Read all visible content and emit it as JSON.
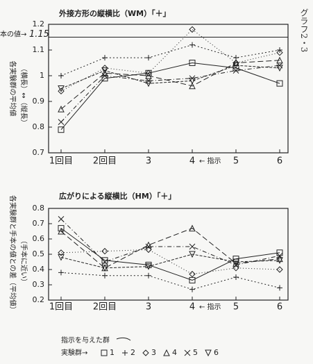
{
  "side_title": "グラフ2・3",
  "legend": {
    "title": "指示を与えた群",
    "label": "実験群→"
  },
  "chart_data": [
    {
      "type": "line",
      "title": "外接方形の縦横比（WM）「＋」",
      "y_label": "各実験群の平均値",
      "y_note": "（横長）↔（縦長）",
      "reference": {
        "label": "本の値→",
        "value": 1.15
      },
      "categories": [
        "1回目",
        "2回目",
        "3",
        "4",
        "5",
        "6"
      ],
      "annotation": "← 指示",
      "ylim": [
        0.7,
        1.2
      ],
      "yticks": [
        0.7,
        0.8,
        0.9,
        1,
        1.1,
        1.2
      ],
      "series": [
        {
          "name": "1",
          "marker": "square",
          "dash": "",
          "color": "#222",
          "values": [
            0.79,
            0.99,
            1.01,
            1.05,
            1.03,
            0.97
          ]
        },
        {
          "name": "2",
          "marker": "plus",
          "dash": "2,3",
          "color": "#222",
          "values": [
            1.0,
            1.07,
            1.07,
            1.12,
            1.07,
            1.1
          ]
        },
        {
          "name": "3",
          "marker": "diamond",
          "dash": "1,3",
          "color": "#222",
          "values": [
            0.94,
            1.03,
            1.01,
            1.18,
            1.05,
            1.09
          ]
        },
        {
          "name": "4",
          "marker": "triangle",
          "dash": "8,4",
          "color": "#222",
          "values": [
            0.87,
            1.01,
            1.0,
            0.96,
            1.05,
            1.06
          ]
        },
        {
          "name": "5",
          "marker": "x",
          "dash": "6,3,1,3",
          "color": "#222",
          "values": [
            0.82,
            1.0,
            0.98,
            0.99,
            1.02,
            1.04
          ]
        },
        {
          "name": "6",
          "marker": "triangle-down",
          "dash": "4,2",
          "color": "#222",
          "values": [
            0.95,
            1.02,
            0.97,
            0.98,
            1.04,
            1.03
          ]
        }
      ]
    },
    {
      "type": "line",
      "title": "広がりによる縦横比（HM）「＋」",
      "y_label": "各実験群と手本の値との差（平均値）",
      "y_note": "（手本に近い）",
      "categories": [
        "1回目",
        "2回目",
        "3",
        "4",
        "5",
        "6"
      ],
      "annotation": "← 指示",
      "ylim": [
        0.2,
        0.8
      ],
      "yticks": [
        0.2,
        0.3,
        0.4,
        0.5,
        0.6,
        0.7,
        0.8
      ],
      "series": [
        {
          "name": "1",
          "marker": "square",
          "dash": "",
          "color": "#222",
          "values": [
            0.67,
            0.46,
            0.43,
            0.33,
            0.47,
            0.51
          ]
        },
        {
          "name": "2",
          "marker": "plus",
          "dash": "2,3",
          "color": "#222",
          "values": [
            0.38,
            0.36,
            0.36,
            0.27,
            0.35,
            0.28
          ]
        },
        {
          "name": "3",
          "marker": "diamond",
          "dash": "1,3",
          "color": "#222",
          "values": [
            0.51,
            0.52,
            0.53,
            0.37,
            0.41,
            0.4
          ]
        },
        {
          "name": "4",
          "marker": "triangle",
          "dash": "8,4",
          "color": "#222",
          "values": [
            0.65,
            0.41,
            0.56,
            0.67,
            0.44,
            0.47
          ]
        },
        {
          "name": "5",
          "marker": "x",
          "dash": "6,3,1,3",
          "color": "#222",
          "values": [
            0.73,
            0.45,
            0.55,
            0.55,
            0.43,
            0.49
          ]
        },
        {
          "name": "6",
          "marker": "triangle-down",
          "dash": "4,2",
          "color": "#222",
          "values": [
            0.48,
            0.41,
            0.42,
            0.5,
            0.45,
            0.46
          ]
        }
      ]
    }
  ]
}
